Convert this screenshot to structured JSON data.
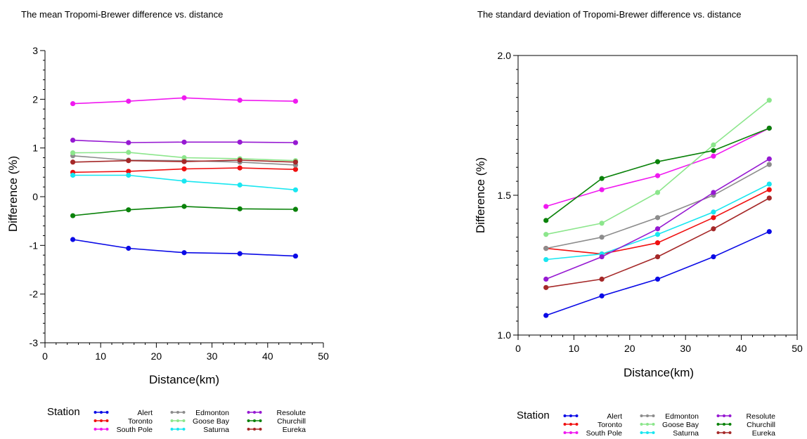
{
  "legend": {
    "title": "Station",
    "entries": [
      {
        "name": "Alert",
        "color": "#0a0ae6"
      },
      {
        "name": "Toronto",
        "color": "#f01010"
      },
      {
        "name": "South Pole",
        "color": "#f019f0"
      },
      {
        "name": "Edmonton",
        "color": "#8c8c8c"
      },
      {
        "name": "Goose Bay",
        "color": "#8ce68c"
      },
      {
        "name": "Saturna",
        "color": "#19e6f0"
      },
      {
        "name": "Resolute",
        "color": "#9619d2"
      },
      {
        "name": "Churchill",
        "color": "#0a820a"
      },
      {
        "name": "Eureka",
        "color": "#a52828"
      }
    ]
  },
  "chart_data": [
    {
      "type": "line",
      "title": "The mean Tropomi-Brewer difference vs. distance",
      "xlabel": "Distance(km)",
      "ylabel": "Difference (%)",
      "xlim": [
        0,
        50
      ],
      "ylim": [
        -3,
        3
      ],
      "xticks": [
        0,
        10,
        20,
        30,
        40,
        50
      ],
      "yticks": [
        -3,
        -2,
        -1,
        0,
        1,
        2,
        3
      ],
      "x": [
        5,
        15,
        25,
        35,
        45
      ],
      "series": [
        {
          "name": "Alert",
          "values": [
            -0.88,
            -1.06,
            -1.15,
            -1.17,
            -1.22
          ]
        },
        {
          "name": "Toronto",
          "values": [
            0.5,
            0.52,
            0.57,
            0.59,
            0.56
          ]
        },
        {
          "name": "South Pole",
          "values": [
            1.91,
            1.96,
            2.03,
            1.98,
            1.96
          ]
        },
        {
          "name": "Edmonton",
          "values": [
            0.84,
            0.75,
            0.74,
            0.71,
            0.65
          ]
        },
        {
          "name": "Goose Bay",
          "values": [
            0.9,
            0.91,
            0.8,
            0.78,
            0.74
          ]
        },
        {
          "name": "Saturna",
          "values": [
            0.44,
            0.44,
            0.32,
            0.24,
            0.14
          ]
        },
        {
          "name": "Resolute",
          "values": [
            1.16,
            1.11,
            1.12,
            1.12,
            1.11
          ]
        },
        {
          "name": "Churchill",
          "values": [
            -0.39,
            -0.27,
            -0.2,
            -0.25,
            -0.26
          ]
        },
        {
          "name": "Eureka",
          "values": [
            0.71,
            0.74,
            0.72,
            0.75,
            0.71
          ]
        }
      ],
      "grid": false,
      "legend_position": "bottom"
    },
    {
      "type": "line",
      "title": "The standard deviation of Tropomi-Brewer difference vs. distance",
      "xlabel": "Distance(km)",
      "ylabel": "Difference (%)",
      "xlim": [
        0,
        50
      ],
      "ylim": [
        1.0,
        2.0
      ],
      "xticks": [
        0,
        10,
        20,
        30,
        40,
        50
      ],
      "yticks": [
        1.0,
        1.5,
        2.0
      ],
      "ytick_labels": [
        "1.0",
        "1.5",
        "2.0"
      ],
      "x": [
        5,
        15,
        25,
        35,
        45
      ],
      "series": [
        {
          "name": "Alert",
          "values": [
            1.07,
            1.14,
            1.2,
            1.28,
            1.37
          ]
        },
        {
          "name": "Toronto",
          "values": [
            1.31,
            1.29,
            1.33,
            1.42,
            1.52
          ]
        },
        {
          "name": "South Pole",
          "values": [
            1.46,
            1.52,
            1.57,
            1.64,
            1.74
          ]
        },
        {
          "name": "Edmonton",
          "values": [
            1.31,
            1.35,
            1.42,
            1.5,
            1.61
          ]
        },
        {
          "name": "Goose Bay",
          "values": [
            1.36,
            1.4,
            1.51,
            1.68,
            1.84
          ]
        },
        {
          "name": "Saturna",
          "values": [
            1.27,
            1.29,
            1.36,
            1.44,
            1.54
          ]
        },
        {
          "name": "Resolute",
          "values": [
            1.2,
            1.28,
            1.38,
            1.51,
            1.63
          ]
        },
        {
          "name": "Churchill",
          "values": [
            1.41,
            1.56,
            1.62,
            1.66,
            1.74
          ]
        },
        {
          "name": "Eureka",
          "values": [
            1.17,
            1.2,
            1.28,
            1.38,
            1.49
          ]
        }
      ],
      "grid": false,
      "legend_position": "bottom"
    }
  ]
}
